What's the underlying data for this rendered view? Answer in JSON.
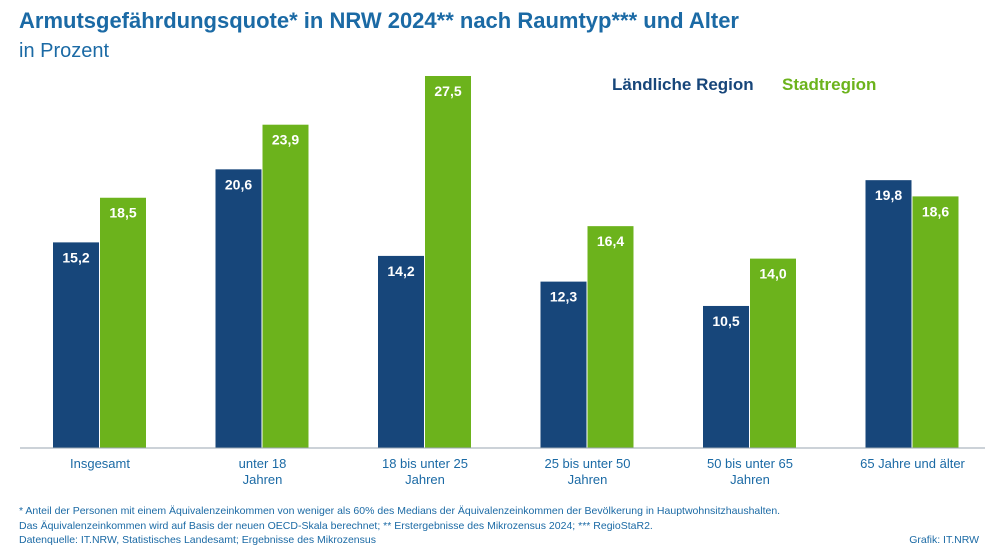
{
  "chart_data": {
    "type": "bar",
    "title": "Armutsgefährdungsquote* in NRW 2024** nach Raumtyp*** und Alter",
    "subtitle": "in Prozent",
    "categories": [
      [
        "Insgesamt"
      ],
      [
        "unter 18",
        "Jahren"
      ],
      [
        "18 bis unter 25",
        "Jahren"
      ],
      [
        "25 bis unter 50",
        "Jahren"
      ],
      [
        "50 bis unter 65",
        "Jahren"
      ],
      [
        "65 Jahre und älter"
      ]
    ],
    "series": [
      {
        "name": "Ländliche Region",
        "color": "#17467a",
        "values": [
          15.2,
          20.6,
          14.2,
          12.3,
          10.5,
          19.8
        ],
        "labels": [
          "15,2",
          "20,6",
          "14,2",
          "12,3",
          "10,5",
          "19,8"
        ]
      },
      {
        "name": "Stadtregion",
        "color": "#6cb31c",
        "values": [
          18.5,
          23.9,
          27.5,
          16.4,
          14.0,
          18.6
        ],
        "labels": [
          "18,5",
          "23,9",
          "27,5",
          "16,4",
          "14,0",
          "18,6"
        ]
      }
    ],
    "ylim": [
      0,
      27.5
    ],
    "grid": false,
    "legend_position": "top-right"
  },
  "footnotes": [
    "* Anteil der Personen mit einem Äquivalenzeinkommen von weniger als 60% des Medians der Äquivalenzeinkommen der Bevölkerung in Hauptwohnsitzhaushalten.",
    "Das Äquivalenzeinkommen wird auf Basis der neuen OECD-Skala berechnet; ** Erstergebnisse des Mikrozensus 2024; *** RegioStaR2.",
    "Datenquelle: IT.NRW, Statistisches Landesamt; Ergebnisse des Mikrozensus"
  ],
  "credit": "Grafik: IT.NRW"
}
